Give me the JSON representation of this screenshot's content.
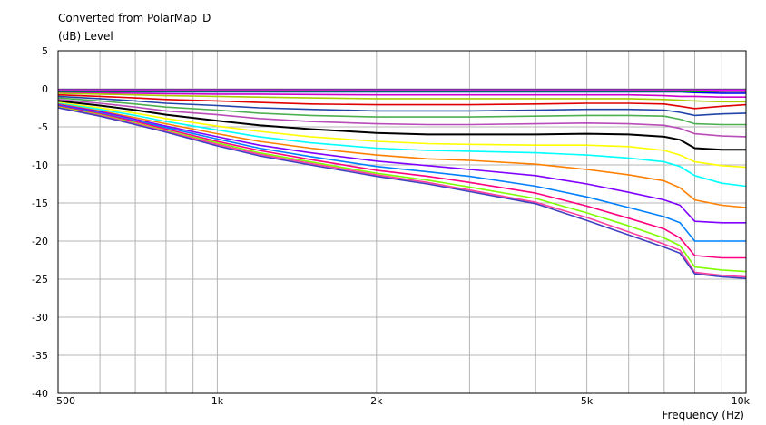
{
  "chart_data": {
    "type": "line",
    "title": "Converted from PolarMap_D",
    "ylabel": "(dB)  Level",
    "xlabel": "Frequency  (Hz)",
    "xscale": "log",
    "xlim": [
      500,
      10000
    ],
    "ylim": [
      -40,
      5
    ],
    "grid": true,
    "legend": "none",
    "x": [
      500,
      600,
      700,
      800,
      1000,
      1200,
      1500,
      2000,
      2500,
      3000,
      4000,
      5000,
      6000,
      7000,
      7500,
      8000,
      9000,
      10000
    ],
    "x_tick_labels": [
      {
        "value": 500,
        "label": "500"
      },
      {
        "value": 1000,
        "label": "1k"
      },
      {
        "value": 2000,
        "label": "2k"
      },
      {
        "value": 5000,
        "label": "5k"
      },
      {
        "value": 10000,
        "label": "10k"
      }
    ],
    "y_tick_labels": [
      {
        "value": 5,
        "label": "5"
      },
      {
        "value": 0,
        "label": "0"
      },
      {
        "value": -5,
        "label": "-5"
      },
      {
        "value": -10,
        "label": "-10"
      },
      {
        "value": -15,
        "label": "-15"
      },
      {
        "value": -20,
        "label": "-20"
      },
      {
        "value": -25,
        "label": "-25"
      },
      {
        "value": -30,
        "label": "-30"
      },
      {
        "value": -35,
        "label": "-35"
      },
      {
        "value": -40,
        "label": "-40"
      }
    ],
    "series": [
      {
        "color": "#7030a0",
        "values": [
          -0.1,
          -0.1,
          -0.1,
          -0.1,
          -0.1,
          -0.1,
          -0.1,
          -0.1,
          -0.1,
          -0.1,
          -0.1,
          -0.1,
          -0.1,
          -0.1,
          -0.1,
          -0.1,
          -0.1,
          -0.1
        ]
      },
      {
        "color": "#ff00ff",
        "values": [
          -0.2,
          -0.2,
          -0.2,
          -0.2,
          -0.2,
          -0.2,
          -0.2,
          -0.2,
          -0.2,
          -0.2,
          -0.2,
          -0.2,
          -0.2,
          -0.2,
          -0.2,
          -0.2,
          -0.2,
          -0.2
        ]
      },
      {
        "color": "#00aa00",
        "values": [
          -0.3,
          -0.3,
          -0.3,
          -0.3,
          -0.3,
          -0.3,
          -0.3,
          -0.3,
          -0.3,
          -0.3,
          -0.3,
          -0.3,
          -0.3,
          -0.3,
          -0.3,
          -0.3,
          -0.4,
          -0.4
        ]
      },
      {
        "color": "#0000ff",
        "values": [
          -0.4,
          -0.4,
          -0.4,
          -0.4,
          -0.4,
          -0.4,
          -0.4,
          -0.4,
          -0.4,
          -0.4,
          -0.4,
          -0.4,
          -0.4,
          -0.4,
          -0.4,
          -0.5,
          -0.6,
          -0.6
        ]
      },
      {
        "color": "#cc00cc",
        "values": [
          -0.5,
          -0.55,
          -0.6,
          -0.65,
          -0.7,
          -0.7,
          -0.75,
          -0.8,
          -0.8,
          -0.8,
          -0.8,
          -0.8,
          -0.8,
          -0.9,
          -1.0,
          -1.0,
          -1.1,
          -1.1
        ]
      },
      {
        "color": "#aacc00",
        "values": [
          -0.6,
          -0.7,
          -0.8,
          -0.9,
          -1.0,
          -1.1,
          -1.2,
          -1.3,
          -1.3,
          -1.3,
          -1.3,
          -1.3,
          -1.3,
          -1.4,
          -1.5,
          -1.6,
          -1.7,
          -1.7
        ]
      },
      {
        "color": "#e00000",
        "values": [
          -0.8,
          -1.0,
          -1.2,
          -1.4,
          -1.6,
          -1.8,
          -2.0,
          -2.1,
          -2.1,
          -2.1,
          -2.0,
          -1.9,
          -1.9,
          -2.0,
          -2.3,
          -2.6,
          -2.3,
          -2.1
        ]
      },
      {
        "color": "#2244aa",
        "values": [
          -1.0,
          -1.3,
          -1.6,
          -1.9,
          -2.2,
          -2.5,
          -2.7,
          -2.9,
          -2.9,
          -2.9,
          -2.8,
          -2.7,
          -2.7,
          -2.8,
          -3.1,
          -3.5,
          -3.3,
          -3.2
        ]
      },
      {
        "color": "#4caf50",
        "values": [
          -1.2,
          -1.6,
          -2.0,
          -2.4,
          -2.8,
          -3.2,
          -3.5,
          -3.7,
          -3.7,
          -3.7,
          -3.6,
          -3.5,
          -3.5,
          -3.6,
          -4.0,
          -4.6,
          -4.7,
          -4.7
        ]
      },
      {
        "color": "#b84cb8",
        "values": [
          -1.4,
          -1.9,
          -2.4,
          -2.9,
          -3.4,
          -3.9,
          -4.3,
          -4.6,
          -4.7,
          -4.7,
          -4.6,
          -4.5,
          -4.6,
          -4.8,
          -5.2,
          -5.9,
          -6.2,
          -6.3
        ]
      },
      {
        "color": "#000000",
        "values": [
          -1.6,
          -2.2,
          -2.8,
          -3.4,
          -4.2,
          -4.8,
          -5.3,
          -5.8,
          -6.0,
          -6.0,
          -6.0,
          -5.9,
          -6.0,
          -6.3,
          -6.7,
          -7.8,
          -8.0,
          -8.0
        ]
      },
      {
        "color": "#ffff00",
        "values": [
          -1.8,
          -2.5,
          -3.2,
          -3.9,
          -4.9,
          -5.6,
          -6.3,
          -6.9,
          -7.2,
          -7.3,
          -7.4,
          -7.4,
          -7.6,
          -8.1,
          -8.7,
          -9.6,
          -10.1,
          -10.3
        ]
      },
      {
        "color": "#00ffff",
        "values": [
          -1.9,
          -2.7,
          -3.5,
          -4.3,
          -5.4,
          -6.3,
          -7.1,
          -7.8,
          -8.1,
          -8.2,
          -8.4,
          -8.7,
          -9.1,
          -9.6,
          -10.2,
          -11.4,
          -12.4,
          -12.8
        ]
      },
      {
        "color": "#ff8000",
        "values": [
          -2.0,
          -2.9,
          -3.8,
          -4.6,
          -5.9,
          -6.9,
          -7.8,
          -8.7,
          -9.2,
          -9.4,
          -9.9,
          -10.6,
          -11.3,
          -12.1,
          -13.0,
          -14.6,
          -15.3,
          -15.6
        ]
      },
      {
        "color": "#8000ff",
        "values": [
          -2.1,
          -3.0,
          -4.0,
          -4.9,
          -6.3,
          -7.4,
          -8.4,
          -9.5,
          -10.1,
          -10.6,
          -11.4,
          -12.5,
          -13.6,
          -14.6,
          -15.3,
          -17.4,
          -17.6,
          -17.6
        ]
      },
      {
        "color": "#0080ff",
        "values": [
          -2.2,
          -3.2,
          -4.2,
          -5.1,
          -6.6,
          -7.8,
          -8.9,
          -10.2,
          -10.9,
          -11.5,
          -12.8,
          -14.2,
          -15.6,
          -16.8,
          -17.6,
          -20.0,
          -20.0,
          -20.0
        ]
      },
      {
        "color": "#ff0080",
        "values": [
          -2.3,
          -3.3,
          -4.3,
          -5.3,
          -6.9,
          -8.1,
          -9.3,
          -10.7,
          -11.5,
          -12.3,
          -13.7,
          -15.4,
          -17.0,
          -18.4,
          -19.6,
          -21.9,
          -22.2,
          -22.2
        ]
      },
      {
        "color": "#80ff00",
        "values": [
          -2.4,
          -3.4,
          -4.5,
          -5.5,
          -7.1,
          -8.4,
          -9.6,
          -11.1,
          -12.0,
          -12.9,
          -14.4,
          -16.3,
          -18.0,
          -19.6,
          -20.6,
          -23.4,
          -23.8,
          -24.0
        ]
      },
      {
        "color": "#ff40a0",
        "values": [
          -2.5,
          -3.5,
          -4.6,
          -5.6,
          -7.3,
          -8.6,
          -9.8,
          -11.3,
          -12.3,
          -13.3,
          -14.9,
          -16.9,
          -18.8,
          -20.4,
          -21.2,
          -24.1,
          -24.5,
          -24.7
        ]
      },
      {
        "color": "#4040c0",
        "values": [
          -2.5,
          -3.6,
          -4.7,
          -5.7,
          -7.5,
          -8.8,
          -10.0,
          -11.5,
          -12.5,
          -13.5,
          -15.1,
          -17.3,
          -19.2,
          -20.8,
          -21.6,
          -24.3,
          -24.7,
          -24.9
        ]
      }
    ]
  }
}
